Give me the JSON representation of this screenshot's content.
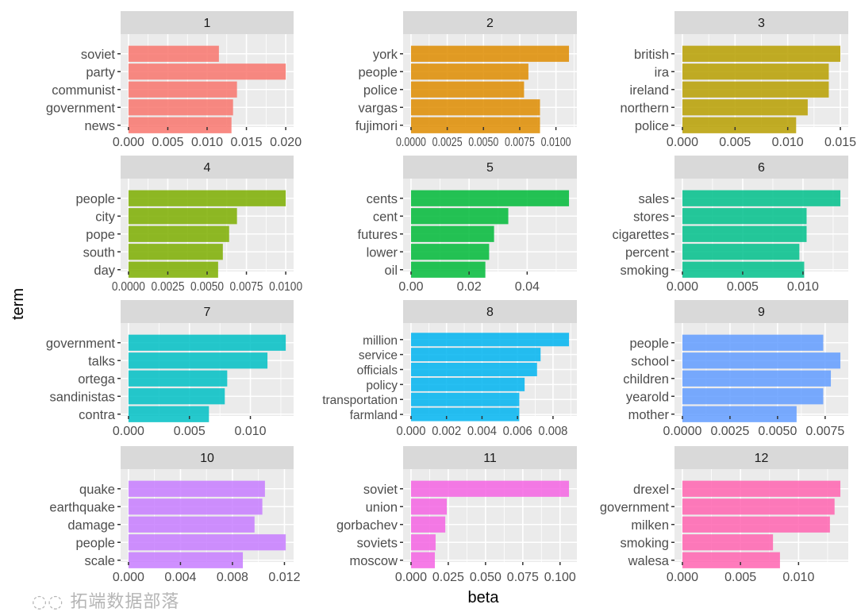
{
  "chart_data": {
    "type": "bar",
    "orientation": "horizontal",
    "facet": "topic",
    "xlabel": "beta",
    "ylabel": "term",
    "grid": true,
    "panels": [
      {
        "title": "1",
        "color": "#F8766D",
        "terms": [
          "soviet",
          "party",
          "communist",
          "government",
          "news"
        ],
        "values": [
          0.0115,
          0.02,
          0.0138,
          0.0133,
          0.0131
        ],
        "ticks": [
          0,
          0.005,
          0.01,
          0.015,
          0.02
        ],
        "tick_labels": [
          "0.000",
          "0.005",
          "0.010",
          "0.015",
          "0.020"
        ]
      },
      {
        "title": "2",
        "color": "#DE8C00",
        "terms": [
          "york",
          "people",
          "police",
          "vargas",
          "fujimori"
        ],
        "values": [
          0.0109,
          0.0081,
          0.0078,
          0.0089,
          0.0089
        ],
        "ticks": [
          0,
          0.0025,
          0.005,
          0.0075,
          0.01
        ],
        "tick_labels": [
          "0.0000",
          "0.0025",
          "0.0050",
          "0.0075",
          "0.0100"
        ]
      },
      {
        "title": "3",
        "color": "#B79F00",
        "terms": [
          "british",
          "ira",
          "ireland",
          "northern",
          "police"
        ],
        "values": [
          0.015,
          0.0139,
          0.0139,
          0.0119,
          0.0108
        ],
        "ticks": [
          0,
          0.005,
          0.01,
          0.015
        ],
        "tick_labels": [
          "0.000",
          "0.005",
          "0.010",
          "0.015"
        ]
      },
      {
        "title": "4",
        "color": "#7CAE00",
        "terms": [
          "people",
          "city",
          "pope",
          "south",
          "day"
        ],
        "values": [
          0.01,
          0.0069,
          0.0064,
          0.006,
          0.0057
        ],
        "ticks": [
          0,
          0.0025,
          0.005,
          0.0075,
          0.01
        ],
        "tick_labels": [
          "0.0000",
          "0.0025",
          "0.0050",
          "0.0075",
          "0.0100"
        ]
      },
      {
        "title": "5",
        "color": "#00BA38",
        "terms": [
          "cents",
          "cent",
          "futures",
          "lower",
          "oil"
        ],
        "values": [
          0.0544,
          0.0335,
          0.0286,
          0.0269,
          0.0256
        ],
        "ticks": [
          0,
          0.02,
          0.04
        ],
        "tick_labels": [
          "0.00",
          "0.02",
          "0.04"
        ]
      },
      {
        "title": "6",
        "color": "#00C08B",
        "terms": [
          "sales",
          "stores",
          "cigarettes",
          "percent",
          "smoking"
        ],
        "values": [
          0.0131,
          0.0103,
          0.0103,
          0.0097,
          0.0101
        ],
        "ticks": [
          0,
          0.005,
          0.01
        ],
        "tick_labels": [
          "0.000",
          "0.005",
          "0.010"
        ]
      },
      {
        "title": "7",
        "color": "#00BFC4",
        "terms": [
          "government",
          "talks",
          "ortega",
          "sandinistas",
          "contra"
        ],
        "values": [
          0.0129,
          0.0114,
          0.0081,
          0.0079,
          0.0066
        ],
        "ticks": [
          0,
          0.005,
          0.01
        ],
        "tick_labels": [
          "0.000",
          "0.005",
          "0.010"
        ]
      },
      {
        "title": "8",
        "color": "#00B4F0",
        "terms": [
          "million",
          "service",
          "officials",
          "policy",
          "transportation",
          "farmland"
        ],
        "values": [
          0.0089,
          0.0073,
          0.0071,
          0.0064,
          0.0061,
          0.0061
        ],
        "ticks": [
          0,
          0.002,
          0.004,
          0.006,
          0.008
        ],
        "tick_labels": [
          "0.000",
          "0.002",
          "0.004",
          "0.006",
          "0.008"
        ]
      },
      {
        "title": "9",
        "color": "#619CFF",
        "terms": [
          "people",
          "school",
          "children",
          "yearold",
          "mother"
        ],
        "values": [
          0.0074,
          0.0083,
          0.0078,
          0.0074,
          0.006
        ],
        "ticks": [
          0,
          0.0025,
          0.005,
          0.0075
        ],
        "tick_labels": [
          "0.0000",
          "0.0025",
          "0.0050",
          "0.0075"
        ]
      },
      {
        "title": "10",
        "color": "#C77CFF",
        "terms": [
          "quake",
          "earthquake",
          "damage",
          "people",
          "scale"
        ],
        "values": [
          0.0105,
          0.0103,
          0.0097,
          0.0121,
          0.0088
        ],
        "ticks": [
          0,
          0.004,
          0.008,
          0.012
        ],
        "tick_labels": [
          "0.000",
          "0.004",
          "0.008",
          "0.012"
        ]
      },
      {
        "title": "11",
        "color": "#F564E3",
        "terms": [
          "soviet",
          "union",
          "gorbachev",
          "soviets",
          "moscow"
        ],
        "values": [
          0.106,
          0.024,
          0.023,
          0.0165,
          0.016
        ],
        "ticks": [
          0,
          0.025,
          0.05,
          0.075,
          0.1
        ],
        "tick_labels": [
          "0.000",
          "0.025",
          "0.050",
          "0.075",
          "0.100"
        ]
      },
      {
        "title": "12",
        "color": "#FF64B0",
        "terms": [
          "drexel",
          "government",
          "milken",
          "smoking",
          "walesa"
        ],
        "values": [
          0.0136,
          0.0131,
          0.0127,
          0.0078,
          0.0084
        ],
        "ticks": [
          0,
          0.005,
          0.01
        ],
        "tick_labels": [
          "0.000",
          "0.005",
          "0.010"
        ]
      }
    ]
  },
  "watermark": "拓端数据部落"
}
